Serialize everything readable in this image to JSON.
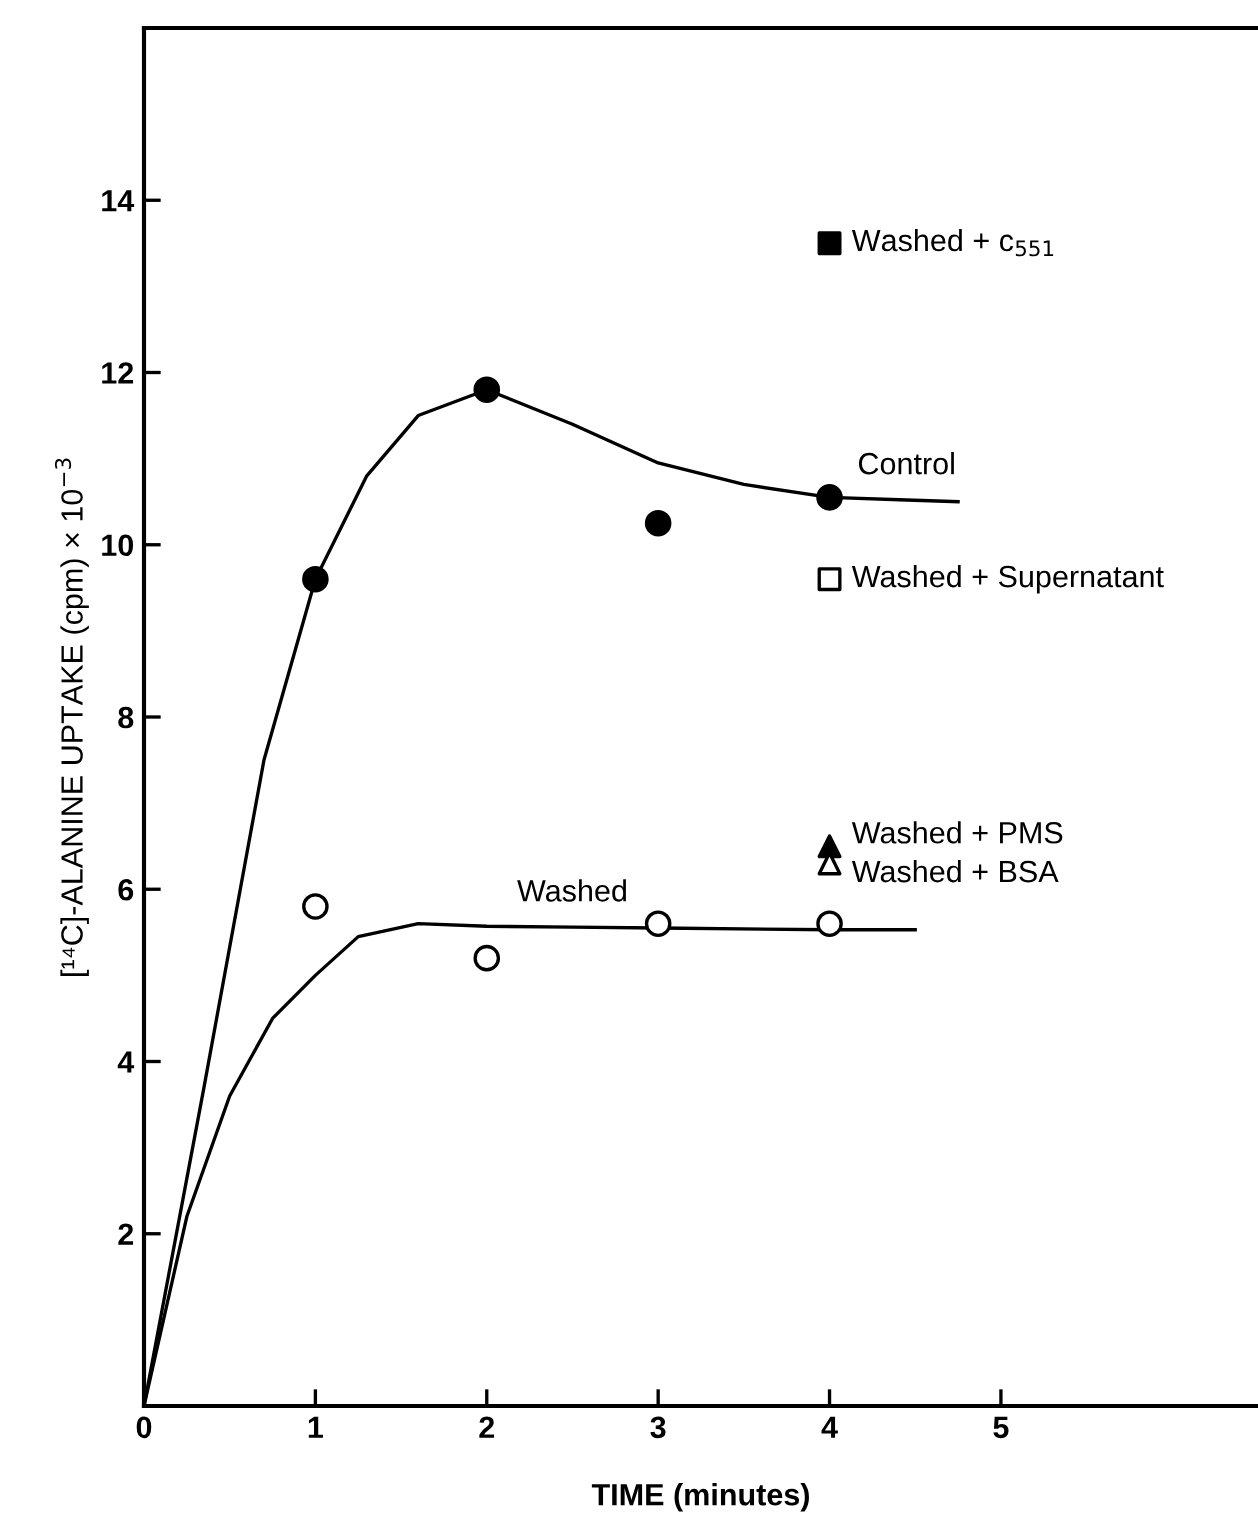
{
  "chart_data": {
    "type": "scatter",
    "xlabel": "TIME (minutes)",
    "ylabel": "[¹⁴C]-ALANINE UPTAKE (cpm) × 10$^{−3}$",
    "xlim": [
      0,
      6.5
    ],
    "ylim": [
      0,
      16
    ],
    "xticks": [
      0,
      1,
      2,
      3,
      4,
      5
    ],
    "yticks": [
      2,
      4,
      6,
      8,
      10,
      12,
      14
    ],
    "grid": false,
    "legend": false,
    "series": [
      {
        "type": "line",
        "color": "#000000",
        "marker": "none",
        "line_style": "solid",
        "x": [
          0,
          0.35,
          0.7,
          1,
          1.3,
          1.6,
          2,
          2.5,
          3,
          3.5,
          4,
          4.45,
          4.75
        ],
        "values": [
          0,
          3.7,
          7.5,
          9.6,
          10.8,
          11.5,
          11.8,
          11.4,
          10.95,
          10.7,
          10.55,
          10.52,
          10.5
        ]
      },
      {
        "type": "line",
        "color": "#000000",
        "marker": "none",
        "line_style": "solid",
        "x": [
          0,
          0.25,
          0.5,
          0.75,
          1,
          1.25,
          1.6,
          2,
          2.5,
          3,
          4,
          4.5
        ],
        "values": [
          0,
          2.2,
          3.6,
          4.5,
          5.0,
          5.45,
          5.6,
          5.57,
          5.56,
          5.55,
          5.53,
          5.53
        ]
      },
      {
        "color": "#000000",
        "marker": "circle",
        "x": [
          1,
          2,
          3,
          4
        ],
        "values": [
          9.6,
          11.8,
          10.25,
          10.55
        ]
      },
      {
        "color": "#ffffff",
        "marker": "circle",
        "x": [
          1,
          2,
          3,
          4
        ],
        "values": [
          5.8,
          5.2,
          5.6,
          5.6
        ]
      },
      {
        "name": "Washed + c$_{551}$",
        "color": "#000000",
        "marker": "square",
        "x": [
          4
        ],
        "values": [
          13.5
        ]
      },
      {
        "name": "Washed + Supernatant",
        "color": "#ffffff",
        "marker": "square",
        "x": [
          4
        ],
        "values": [
          9.6
        ]
      },
      {
        "name": "Washed + PMS",
        "color": "#000000",
        "marker": "triangle",
        "x": [
          4
        ],
        "values": [
          6.5
        ]
      },
      {
        "name": "Washed + BSA",
        "color": "#ffffff",
        "marker": "triangle",
        "x": [
          4
        ],
        "values": [
          6.3
        ]
      }
    ],
    "annotations": [
      {
        "text": "Control",
        "x": 4.45,
        "y": 10.52
      },
      {
        "text": "Washed",
        "x": 2.5,
        "y": 5.56
      }
    ]
  }
}
